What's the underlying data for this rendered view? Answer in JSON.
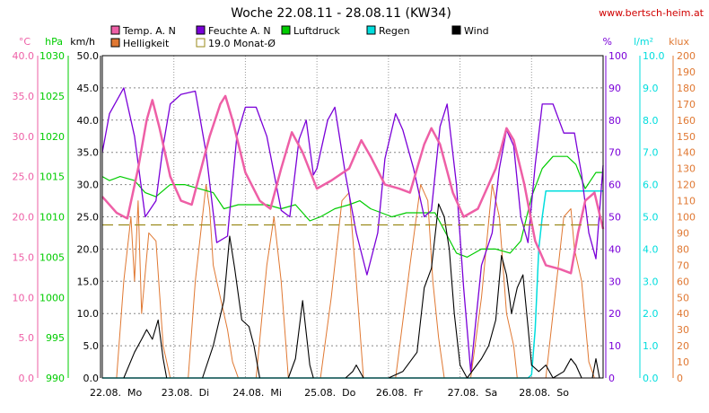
{
  "title": "Woche 22.08.11 - 28.08.11 (KW34)",
  "url": "www.bertsch-heim.at",
  "colors": {
    "temp": "#ee5fa6",
    "feuchte": "#7a00d8",
    "luftdruck": "#00cc00",
    "regen": "#00dddd",
    "wind": "#000000",
    "helligkeit": "#e07832",
    "monat": "#9a8a1a",
    "grid": "#888888"
  },
  "legend": {
    "temp": "Temp. A. N",
    "feuchte": "Feuchte A. N",
    "luftdruck": "Luftdruck",
    "regen": "Regen",
    "wind": "Wind",
    "helligkeit": "Helligkeit",
    "monat": "19.0 Monat-Ø"
  },
  "axes": {
    "temp_unit": "°C",
    "hpa_unit": "hPa",
    "kmh_unit": "km/h",
    "pct_unit": "%",
    "lm2_unit": "l/m²",
    "klux_unit": "klux",
    "temp_ticks": [
      "0.0",
      "5.0",
      "10.0",
      "15.0",
      "20.0",
      "25.0",
      "30.0",
      "35.0",
      "40.0"
    ],
    "hpa_ticks": [
      "990",
      "995",
      "1000",
      "1005",
      "1010",
      "1015",
      "1020",
      "1025",
      "1030"
    ],
    "kmh_ticks": [
      "0.0",
      "5.0",
      "10.0",
      "15.0",
      "20.0",
      "25.0",
      "30.0",
      "35.0",
      "40.0",
      "45.0",
      "50.0"
    ],
    "pct_ticks": [
      "0",
      "10",
      "20",
      "30",
      "40",
      "50",
      "60",
      "70",
      "80",
      "90",
      "100"
    ],
    "lm2_ticks": [
      "0.0",
      "1.0",
      "2.0",
      "3.0",
      "4.0",
      "5.0",
      "6.0",
      "7.0",
      "8.0",
      "9.0",
      "10.0"
    ],
    "klux_ticks": [
      "0",
      "10",
      "20",
      "30",
      "40",
      "50",
      "60",
      "70",
      "80",
      "90",
      "100",
      "110",
      "120",
      "130",
      "140",
      "150",
      "160",
      "170",
      "180",
      "190",
      "200"
    ],
    "day_labels": [
      "22.08.  Mo",
      "23.08.  Di",
      "24.08.  Mi",
      "25.08.  Do",
      "26.08.  Fr",
      "27.08.  Sa",
      "28.08.  So"
    ]
  },
  "chart_data": {
    "type": "line",
    "title": "Woche 22.08.11 - 28.08.11 (KW34)",
    "x_days": [
      "22.08. Mo",
      "23.08. Di",
      "24.08. Mi",
      "25.08. Do",
      "26.08. Fr",
      "27.08. Sa",
      "28.08. So"
    ],
    "x_unit": "day (fractional, 0 = 22.08. 00:00)",
    "xlim": [
      0,
      7
    ],
    "series": [
      {
        "name": "Temp. A. N",
        "axis": "°C",
        "ylim": [
          0,
          40
        ],
        "points": [
          [
            0,
            22.5
          ],
          [
            0.2,
            20.5
          ],
          [
            0.35,
            19.8
          ],
          [
            0.5,
            26
          ],
          [
            0.62,
            32
          ],
          [
            0.7,
            34.5
          ],
          [
            0.8,
            31
          ],
          [
            0.95,
            25
          ],
          [
            1.1,
            22
          ],
          [
            1.25,
            21.5
          ],
          [
            1.5,
            30
          ],
          [
            1.65,
            34
          ],
          [
            1.72,
            35
          ],
          [
            1.82,
            32
          ],
          [
            2.0,
            25.5
          ],
          [
            2.2,
            22
          ],
          [
            2.35,
            21
          ],
          [
            2.5,
            26
          ],
          [
            2.65,
            30.5
          ],
          [
            2.8,
            28
          ],
          [
            3.0,
            23.5
          ],
          [
            3.2,
            24.5
          ],
          [
            3.45,
            26
          ],
          [
            3.62,
            29.5
          ],
          [
            3.75,
            27.5
          ],
          [
            3.95,
            24
          ],
          [
            4.15,
            23.5
          ],
          [
            4.3,
            23
          ],
          [
            4.5,
            29
          ],
          [
            4.6,
            31
          ],
          [
            4.72,
            29
          ],
          [
            4.9,
            23
          ],
          [
            5.05,
            20
          ],
          [
            5.25,
            21
          ],
          [
            5.5,
            26
          ],
          [
            5.65,
            31
          ],
          [
            5.75,
            29.5
          ],
          [
            5.9,
            24
          ],
          [
            6.05,
            17
          ],
          [
            6.2,
            14
          ],
          [
            6.4,
            13.5
          ],
          [
            6.55,
            13
          ],
          [
            6.65,
            18
          ],
          [
            6.75,
            22
          ],
          [
            6.88,
            23
          ],
          [
            7.0,
            18.5
          ]
        ]
      },
      {
        "name": "Feuchte A. N",
        "axis": "%",
        "ylim": [
          0,
          100
        ],
        "points": [
          [
            0,
            70
          ],
          [
            0.1,
            82
          ],
          [
            0.3,
            90
          ],
          [
            0.45,
            75
          ],
          [
            0.6,
            50
          ],
          [
            0.75,
            55
          ],
          [
            0.85,
            72
          ],
          [
            0.95,
            85
          ],
          [
            1.1,
            88
          ],
          [
            1.3,
            89
          ],
          [
            1.45,
            70
          ],
          [
            1.6,
            42
          ],
          [
            1.75,
            44
          ],
          [
            1.88,
            75
          ],
          [
            2.0,
            84
          ],
          [
            2.15,
            84
          ],
          [
            2.3,
            75
          ],
          [
            2.5,
            52
          ],
          [
            2.62,
            50
          ],
          [
            2.75,
            74
          ],
          [
            2.85,
            80
          ],
          [
            2.95,
            63
          ],
          [
            3.0,
            65
          ],
          [
            3.15,
            80
          ],
          [
            3.25,
            84
          ],
          [
            3.4,
            63
          ],
          [
            3.55,
            45
          ],
          [
            3.7,
            32
          ],
          [
            3.85,
            45
          ],
          [
            3.95,
            68
          ],
          [
            4.1,
            82
          ],
          [
            4.2,
            77
          ],
          [
            4.35,
            65
          ],
          [
            4.5,
            50
          ],
          [
            4.6,
            52
          ],
          [
            4.72,
            78
          ],
          [
            4.82,
            85
          ],
          [
            4.95,
            60
          ],
          [
            5.05,
            28
          ],
          [
            5.15,
            2
          ],
          [
            5.3,
            35
          ],
          [
            5.45,
            45
          ],
          [
            5.55,
            65
          ],
          [
            5.65,
            77
          ],
          [
            5.75,
            72
          ],
          [
            5.85,
            50
          ],
          [
            5.95,
            42
          ],
          [
            6.05,
            66
          ],
          [
            6.15,
            85
          ],
          [
            6.3,
            85
          ],
          [
            6.45,
            76
          ],
          [
            6.6,
            76
          ],
          [
            6.7,
            63
          ],
          [
            6.8,
            45
          ],
          [
            6.9,
            37
          ],
          [
            7.0,
            66
          ]
        ]
      },
      {
        "name": "Luftdruck",
        "axis": "hPa",
        "ylim": [
          990,
          1030
        ],
        "points": [
          [
            0,
            1015
          ],
          [
            0.1,
            1014.5
          ],
          [
            0.25,
            1015
          ],
          [
            0.45,
            1014.5
          ],
          [
            0.6,
            1013
          ],
          [
            0.75,
            1012.5
          ],
          [
            0.95,
            1014
          ],
          [
            1.15,
            1014
          ],
          [
            1.35,
            1013.5
          ],
          [
            1.55,
            1013
          ],
          [
            1.7,
            1011
          ],
          [
            1.9,
            1011.5
          ],
          [
            2.1,
            1011.5
          ],
          [
            2.3,
            1011.5
          ],
          [
            2.5,
            1011
          ],
          [
            2.7,
            1011.5
          ],
          [
            2.9,
            1009.5
          ],
          [
            3.05,
            1010
          ],
          [
            3.25,
            1011
          ],
          [
            3.45,
            1011.5
          ],
          [
            3.6,
            1012
          ],
          [
            3.75,
            1011
          ],
          [
            3.9,
            1010.5
          ],
          [
            4.05,
            1010
          ],
          [
            4.25,
            1010.5
          ],
          [
            4.45,
            1010.5
          ],
          [
            4.65,
            1010.5
          ],
          [
            4.8,
            1008
          ],
          [
            4.95,
            1005.5
          ],
          [
            5.1,
            1005
          ],
          [
            5.3,
            1006
          ],
          [
            5.5,
            1006
          ],
          [
            5.7,
            1005.5
          ],
          [
            5.85,
            1007
          ],
          [
            6.0,
            1012.5
          ],
          [
            6.15,
            1016
          ],
          [
            6.3,
            1017.5
          ],
          [
            6.5,
            1017.5
          ],
          [
            6.62,
            1016.5
          ],
          [
            6.75,
            1013.5
          ],
          [
            6.9,
            1015.5
          ],
          [
            7.0,
            1015.5
          ]
        ]
      },
      {
        "name": "Regen",
        "axis": "l/m²",
        "ylim": [
          0,
          10
        ],
        "points": [
          [
            0,
            0
          ],
          [
            5.95,
            0
          ],
          [
            6.0,
            0.1
          ],
          [
            6.05,
            1.5
          ],
          [
            6.1,
            4.0
          ],
          [
            6.15,
            5.0
          ],
          [
            6.2,
            5.8
          ],
          [
            7.0,
            5.8
          ]
        ]
      },
      {
        "name": "Wind",
        "axis": "km/h",
        "ylim": [
          0,
          50
        ],
        "points": [
          [
            0,
            0
          ],
          [
            0.3,
            0
          ],
          [
            0.45,
            4
          ],
          [
            0.55,
            6
          ],
          [
            0.62,
            7.5
          ],
          [
            0.7,
            6
          ],
          [
            0.78,
            9
          ],
          [
            0.85,
            3
          ],
          [
            0.9,
            0
          ],
          [
            1.4,
            0
          ],
          [
            1.55,
            5
          ],
          [
            1.7,
            12
          ],
          [
            1.78,
            22
          ],
          [
            1.85,
            17
          ],
          [
            1.95,
            9
          ],
          [
            2.05,
            8
          ],
          [
            2.12,
            5
          ],
          [
            2.2,
            0
          ],
          [
            2.6,
            0
          ],
          [
            2.7,
            3
          ],
          [
            2.8,
            12
          ],
          [
            2.9,
            2
          ],
          [
            2.95,
            0
          ],
          [
            3.4,
            0
          ],
          [
            3.5,
            1
          ],
          [
            3.55,
            2
          ],
          [
            3.65,
            0
          ],
          [
            4.0,
            0
          ],
          [
            4.2,
            1
          ],
          [
            4.4,
            4
          ],
          [
            4.5,
            14
          ],
          [
            4.6,
            17
          ],
          [
            4.7,
            27
          ],
          [
            4.78,
            25
          ],
          [
            4.85,
            20
          ],
          [
            4.92,
            10
          ],
          [
            5.0,
            2
          ],
          [
            5.1,
            0
          ],
          [
            5.3,
            3
          ],
          [
            5.4,
            5
          ],
          [
            5.5,
            9
          ],
          [
            5.58,
            19
          ],
          [
            5.65,
            16
          ],
          [
            5.72,
            10
          ],
          [
            5.8,
            14
          ],
          [
            5.88,
            16
          ],
          [
            5.95,
            8
          ],
          [
            6.0,
            2
          ],
          [
            6.1,
            1
          ],
          [
            6.2,
            2
          ],
          [
            6.3,
            0
          ],
          [
            6.45,
            1
          ],
          [
            6.55,
            3
          ],
          [
            6.62,
            2
          ],
          [
            6.7,
            0
          ],
          [
            6.85,
            0
          ],
          [
            6.9,
            3
          ],
          [
            6.95,
            0
          ],
          [
            7.0,
            0
          ]
        ]
      },
      {
        "name": "Helligkeit",
        "axis": "klux",
        "ylim": [
          0,
          200
        ],
        "points": [
          [
            0,
            0
          ],
          [
            0.2,
            0
          ],
          [
            0.3,
            60
          ],
          [
            0.4,
            100
          ],
          [
            0.45,
            60
          ],
          [
            0.5,
            110
          ],
          [
            0.55,
            40
          ],
          [
            0.65,
            90
          ],
          [
            0.75,
            85
          ],
          [
            0.85,
            20
          ],
          [
            0.95,
            0
          ],
          [
            1.2,
            0
          ],
          [
            1.3,
            60
          ],
          [
            1.45,
            120
          ],
          [
            1.5,
            105
          ],
          [
            1.55,
            70
          ],
          [
            1.65,
            50
          ],
          [
            1.75,
            30
          ],
          [
            1.82,
            10
          ],
          [
            1.9,
            0
          ],
          [
            2.15,
            0
          ],
          [
            2.3,
            70
          ],
          [
            2.4,
            100
          ],
          [
            2.5,
            60
          ],
          [
            2.55,
            30
          ],
          [
            2.6,
            0
          ],
          [
            3.05,
            0
          ],
          [
            3.2,
            50
          ],
          [
            3.35,
            110
          ],
          [
            3.45,
            115
          ],
          [
            3.55,
            60
          ],
          [
            3.6,
            30
          ],
          [
            3.65,
            0
          ],
          [
            4.1,
            0
          ],
          [
            4.3,
            70
          ],
          [
            4.45,
            120
          ],
          [
            4.55,
            110
          ],
          [
            4.62,
            60
          ],
          [
            4.7,
            25
          ],
          [
            4.78,
            0
          ],
          [
            5.15,
            0
          ],
          [
            5.3,
            50
          ],
          [
            5.45,
            120
          ],
          [
            5.55,
            100
          ],
          [
            5.65,
            40
          ],
          [
            5.75,
            20
          ],
          [
            5.8,
            0
          ],
          [
            6.2,
            0
          ],
          [
            6.35,
            60
          ],
          [
            6.45,
            100
          ],
          [
            6.55,
            105
          ],
          [
            6.6,
            80
          ],
          [
            6.7,
            60
          ],
          [
            6.8,
            10
          ],
          [
            6.88,
            0
          ],
          [
            7.0,
            0
          ]
        ]
      },
      {
        "name": "19.0 Monat-Ø",
        "axis": "°C",
        "ylim": [
          0,
          40
        ],
        "points": [
          [
            0,
            19
          ],
          [
            7,
            19
          ]
        ]
      }
    ],
    "grid": true
  }
}
